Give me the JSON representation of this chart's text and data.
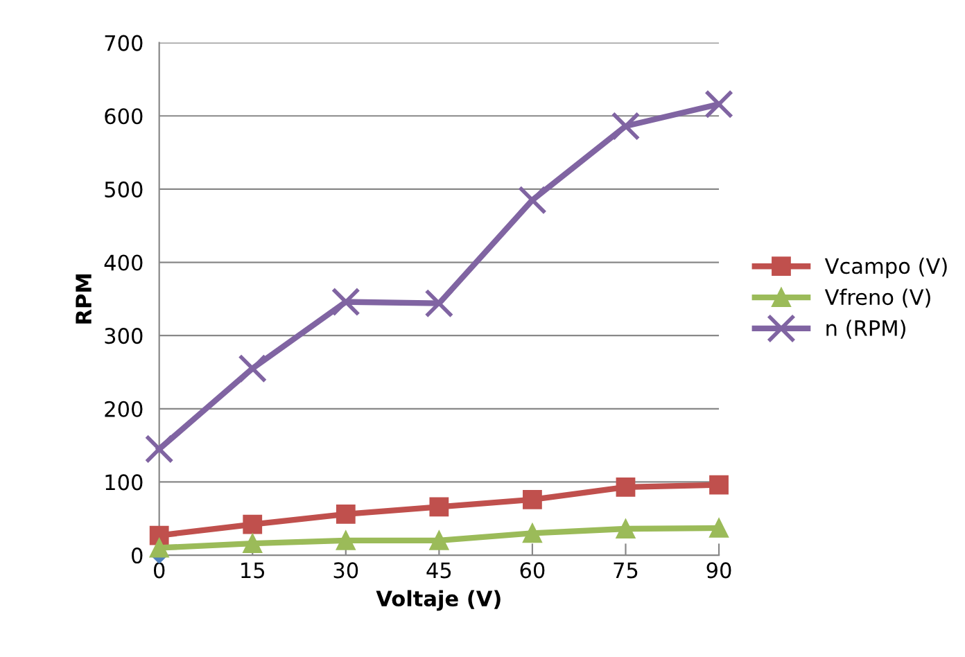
{
  "chart_data": {
    "type": "line",
    "xlabel": "Voltaje (V)",
    "ylabel": "RPM",
    "categories": [
      "0",
      "15",
      "30",
      "45",
      "60",
      "75",
      "90"
    ],
    "series": [
      {
        "type": "scatter",
        "color": "#4f81bd",
        "marker": "diamond",
        "values": [
          0,
          null,
          null,
          null,
          null,
          null,
          null
        ]
      },
      {
        "name": "Vcampo (V)",
        "color": "#c0504d",
        "marker": "square",
        "values": [
          27,
          42,
          56,
          66,
          76,
          93,
          96
        ]
      },
      {
        "name": "Vfreno (V)",
        "color": "#9bbb59",
        "marker": "triangle",
        "values": [
          10,
          16,
          20,
          20,
          30,
          36,
          37
        ]
      },
      {
        "name": "n (RPM)",
        "color": "#8064a2",
        "marker": "cross",
        "values": [
          145,
          255,
          346,
          344,
          485,
          586,
          616
        ]
      }
    ],
    "ylim": [
      0,
      700
    ],
    "yticks": [
      0,
      100,
      200,
      300,
      400,
      500,
      600,
      700
    ],
    "grid": "y",
    "legend": "right",
    "line_style": "solid"
  }
}
